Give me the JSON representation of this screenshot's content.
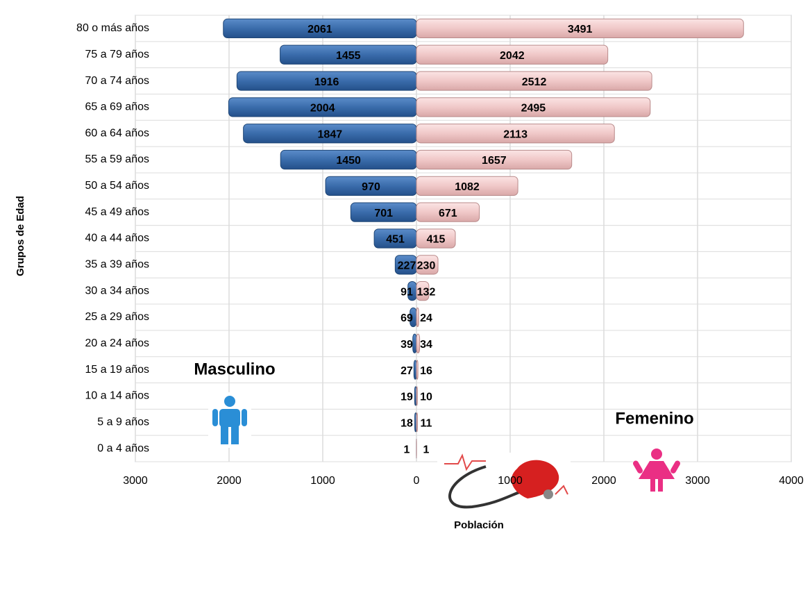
{
  "chart_data": {
    "type": "pyramid",
    "x_label": "Población",
    "y_label": "Grupos de Edad",
    "categories": [
      "80 o más años",
      "75 a 79 años",
      "70 a 74 años",
      "65 a 69 años",
      "60 a 64 años",
      "55 a 59 años",
      "50 a 54 años",
      "45 a 49 años",
      "40 a 44 años",
      "35 a 39 años",
      "30 a 34 años",
      "25 a 29 años",
      "20 a 24 años",
      "15 a 19 años",
      "10 a 14 años",
      "5 a 9 años",
      "0 a 4 años"
    ],
    "series": [
      {
        "name": "Masculino",
        "color": "#3a6cab",
        "values": [
          -2061,
          -1455,
          -1916,
          -2004,
          -1847,
          -1450,
          -970,
          -701,
          -451,
          -227,
          -91,
          -69,
          -39,
          -27,
          -19,
          -18,
          -1
        ],
        "value_labels": [
          "2061",
          "1455",
          "1916",
          "2004",
          "1847",
          "1450",
          "970",
          "701",
          "451",
          "227",
          "91",
          "69",
          "39",
          "27",
          "19",
          "18",
          "1"
        ]
      },
      {
        "name": "Femenino",
        "color": "#f0c8c8",
        "values": [
          3491,
          2042,
          2512,
          2495,
          2113,
          1657,
          1082,
          671,
          415,
          230,
          132,
          24,
          34,
          16,
          10,
          11,
          1
        ]
      }
    ],
    "xlim": [
      -3000,
      4000
    ],
    "xticks": [
      {
        "value": -3000,
        "label": "3000"
      },
      {
        "value": -2000,
        "label": "2000"
      },
      {
        "value": -1000,
        "label": "1000"
      },
      0,
      1000,
      2000,
      3000,
      4000
    ],
    "grid": true
  }
}
